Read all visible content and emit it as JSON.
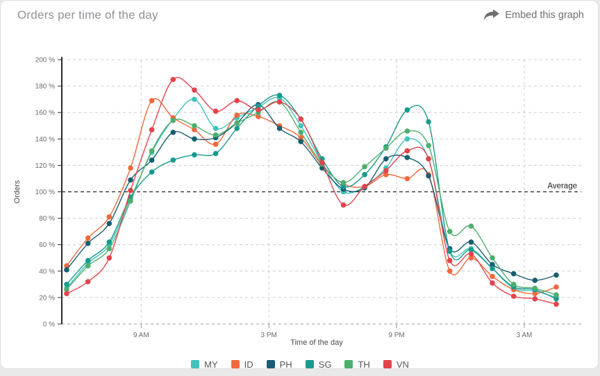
{
  "header": {
    "title": "Orders per time of the day",
    "embed_label": "Embed this graph"
  },
  "colors": {
    "title": "#8f9296",
    "embed": "#6e6e6e",
    "tick_label": "#6b6b6b",
    "axis_label": "#4a4a4a",
    "grid": "#cccccc",
    "grid_zero": "#9a9a9a",
    "y_axis": "#2a2a2a",
    "average": "#222222"
  },
  "chart_data": {
    "type": "line",
    "title": "Orders per time of the day",
    "xlabel": "Time of the day",
    "ylabel": "Orders",
    "ylim": [
      0,
      200
    ],
    "ytick_step": 20,
    "ytick_suffix": " %",
    "grid": "dashed",
    "legend_position": "bottom",
    "average_line": {
      "value": 100,
      "label": "Average"
    },
    "x": [
      "6 AM",
      "7 AM",
      "8 AM",
      "9 AM",
      "10 AM",
      "11 AM",
      "12 PM",
      "1 PM",
      "2 PM",
      "3 PM",
      "4 PM",
      "5 PM",
      "6 PM",
      "7 PM",
      "8 PM",
      "9 PM",
      "10 PM",
      "11 PM",
      "12 AM",
      "1 AM",
      "2 AM",
      "3 AM",
      "4 AM",
      "5 AM"
    ],
    "xticks": {
      "labels": [
        "9 AM",
        "3 PM",
        "9 PM",
        "3 AM"
      ],
      "positions": [
        3.5,
        9.5,
        15.5,
        21.5
      ]
    },
    "series": [
      {
        "name": "MY",
        "color": "#41C2BC",
        "values": [
          27,
          46,
          60,
          95,
          130,
          155,
          170,
          148,
          156,
          164,
          171,
          150,
          122,
          100,
          104,
          118,
          140,
          125,
          55,
          57,
          42,
          27,
          25,
          20
        ]
      },
      {
        "name": "ID",
        "color": "#F0683C",
        "values": [
          44,
          65,
          81,
          118,
          169,
          156,
          147,
          136,
          158,
          157,
          150,
          141,
          120,
          106,
          104,
          113,
          110,
          113,
          40,
          50,
          36,
          26,
          23,
          28
        ]
      },
      {
        "name": "PH",
        "color": "#175E70",
        "values": [
          41,
          61,
          76,
          109,
          124,
          145,
          140,
          141,
          152,
          166,
          148,
          138,
          118,
          102,
          103,
          125,
          126,
          112,
          57,
          62,
          45,
          38,
          33,
          37
        ]
      },
      {
        "name": "SG",
        "color": "#189A8D",
        "values": [
          30,
          48,
          62,
          96,
          115,
          124,
          128,
          129,
          148,
          165,
          173,
          155,
          125,
          104,
          113,
          134,
          162,
          153,
          55,
          56,
          42,
          28,
          26,
          19
        ]
      },
      {
        "name": "TH",
        "color": "#4FAE6D",
        "values": [
          26,
          44,
          57,
          93,
          131,
          154,
          150,
          143,
          152,
          160,
          168,
          145,
          121,
          107,
          119,
          133,
          146,
          135,
          70,
          74,
          50,
          30,
          27,
          22
        ]
      },
      {
        "name": "VN",
        "color": "#E2444C",
        "values": [
          23,
          32,
          50,
          101,
          147,
          185,
          177,
          161,
          169,
          162,
          168,
          155,
          122,
          90,
          104,
          116,
          131,
          125,
          48,
          53,
          31,
          21,
          19,
          15
        ]
      }
    ]
  }
}
